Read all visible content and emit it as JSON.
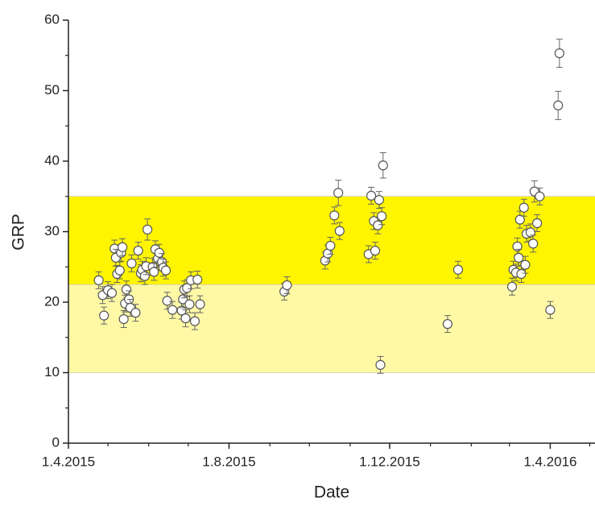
{
  "chart_data": {
    "type": "scatter",
    "x_label": "Date",
    "y_label": "GRP",
    "xlim": [
      "2015-04-01",
      "2016-05-05"
    ],
    "xticks": [
      {
        "value": "2015-04-01",
        "label": "1.4.2015"
      },
      {
        "value": "2015-08-01",
        "label": "1.8.2015"
      },
      {
        "value": "2015-12-01",
        "label": "1.12.2015"
      },
      {
        "value": "2016-04-01",
        "label": "1.4.2016"
      }
    ],
    "xminorticks": [
      "2015-05-01",
      "2015-06-01",
      "2015-07-01",
      "2015-09-01",
      "2015-10-01",
      "2015-11-01",
      "2016-01-01",
      "2016-02-01",
      "2016-03-01",
      "2016-05-01"
    ],
    "ylim": [
      0,
      60
    ],
    "yticks": [
      0,
      10,
      20,
      30,
      40,
      50,
      60
    ],
    "yminorticks": [
      5,
      15,
      25,
      35,
      45,
      55
    ],
    "bands": [
      {
        "from": 10,
        "to": 22.5,
        "color": "#fff9a6"
      },
      {
        "from": 22.5,
        "to": 35,
        "color": "#fff500"
      }
    ],
    "marker_color": "#ffffff",
    "marker_edge": "#555555",
    "error_color": "#666666",
    "x": [
      "2015-04-24",
      "2015-04-27",
      "2015-04-28",
      "2015-05-01",
      "2015-05-04",
      "2015-05-06",
      "2015-05-07",
      "2015-05-08",
      "2015-05-10",
      "2015-05-11",
      "2015-05-12",
      "2015-05-13",
      "2015-05-14",
      "2015-05-15",
      "2015-05-17",
      "2015-05-18",
      "2015-05-19",
      "2015-05-22",
      "2015-05-24",
      "2015-05-26",
      "2015-05-27",
      "2015-05-29",
      "2015-05-30",
      "2015-05-31",
      "2015-06-04",
      "2015-06-05",
      "2015-06-06",
      "2015-06-08",
      "2015-06-09",
      "2015-06-11",
      "2015-06-12",
      "2015-06-14",
      "2015-06-15",
      "2015-06-19",
      "2015-06-26",
      "2015-06-27",
      "2015-06-28",
      "2015-06-29",
      "2015-06-30",
      "2015-07-02",
      "2015-07-03",
      "2015-07-06",
      "2015-07-08",
      "2015-07-10",
      "2015-09-12",
      "2015-09-14",
      "2015-10-13",
      "2015-10-15",
      "2015-10-17",
      "2015-10-20",
      "2015-10-23",
      "2015-10-24",
      "2015-11-15",
      "2015-11-17",
      "2015-11-19",
      "2015-11-20",
      "2015-11-22",
      "2015-11-23",
      "2015-11-24",
      "2015-11-25",
      "2015-11-26",
      "2016-01-14",
      "2016-01-22",
      "2016-03-03",
      "2016-03-04",
      "2016-03-06",
      "2016-03-07",
      "2016-03-08",
      "2016-03-09",
      "2016-03-10",
      "2016-03-12",
      "2016-03-13",
      "2016-03-14",
      "2016-03-17",
      "2016-03-19",
      "2016-03-20",
      "2016-03-22",
      "2016-03-24",
      "2016-04-01",
      "2016-04-07",
      "2016-04-08"
    ],
    "values": [
      23.1,
      21.0,
      18.1,
      21.7,
      21.3,
      27.6,
      26.3,
      24.0,
      24.5,
      27.0,
      27.8,
      17.6,
      19.8,
      21.8,
      20.4,
      19.2,
      25.5,
      18.5,
      27.3,
      24.1,
      24.6,
      23.7,
      25.1,
      30.3,
      25.0,
      24.3,
      27.5,
      26.2,
      27.0,
      25.7,
      24.9,
      24.5,
      20.2,
      18.9,
      18.8,
      20.4,
      21.8,
      17.7,
      22.0,
      19.7,
      23.1,
      17.3,
      23.2,
      19.7,
      21.5,
      22.4,
      25.9,
      26.9,
      28.0,
      32.3,
      35.5,
      30.1,
      26.8,
      35.1,
      31.5,
      27.3,
      30.9,
      34.5,
      11.1,
      32.2,
      39.4,
      16.9,
      24.6,
      22.2,
      24.6,
      24.2,
      27.9,
      26.3,
      31.7,
      24.0,
      33.4,
      25.3,
      29.7,
      29.9,
      28.3,
      35.7,
      31.2,
      35.0,
      18.9,
      47.9,
      55.3
    ],
    "errors": [
      1.2,
      1.2,
      1.2,
      1.2,
      1.2,
      1.2,
      1.2,
      1.2,
      1.2,
      1.2,
      1.2,
      1.2,
      1.2,
      1.2,
      1.2,
      1.2,
      1.2,
      1.2,
      1.2,
      1.2,
      1.2,
      1.2,
      1.2,
      1.5,
      1.2,
      1.2,
      1.2,
      1.2,
      1.2,
      1.2,
      1.2,
      1.2,
      1.2,
      1.2,
      1.2,
      1.2,
      1.2,
      1.2,
      1.2,
      1.2,
      1.2,
      1.2,
      1.2,
      1.2,
      1.2,
      1.2,
      1.2,
      1.2,
      1.2,
      1.2,
      1.8,
      1.2,
      1.2,
      1.2,
      1.2,
      1.2,
      1.2,
      1.2,
      1.2,
      1.2,
      1.8,
      1.2,
      1.2,
      1.2,
      1.2,
      1.2,
      1.2,
      1.2,
      1.2,
      1.2,
      1.2,
      1.2,
      1.2,
      1.2,
      1.2,
      1.5,
      1.2,
      1.2,
      1.2,
      2.0,
      2.0
    ]
  }
}
